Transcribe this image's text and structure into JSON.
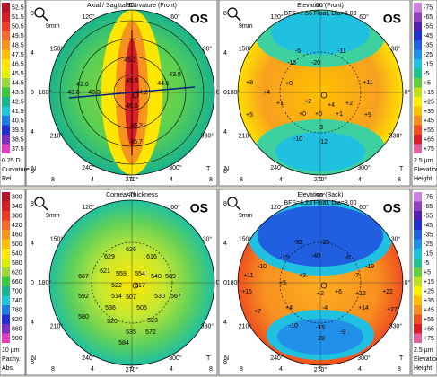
{
  "axis_ticks": [
    "8",
    "4",
    "0",
    "4",
    "8"
  ],
  "angles": [
    "90°",
    "60°",
    "30°",
    "0°",
    "330°",
    "300°",
    "270°",
    "240°",
    "210°",
    "180°",
    "150°",
    "120°"
  ],
  "nasal": "N",
  "temporal": "T",
  "panels": [
    {
      "title": "Axial / Sagittal Curvature (Front)",
      "eye": "OS",
      "zoom": "9mm",
      "scale": {
        "labels": [
          "52.5",
          "51.5",
          "50.5",
          "49.5",
          "48.5",
          "47.5",
          "46.5",
          "45.5",
          "44.5",
          "43.5",
          "42.5",
          "41.5",
          "40.5",
          "39.5",
          "38.5",
          "37.5"
        ],
        "colors": [
          "#b5162a",
          "#d81f26",
          "#ef3b24",
          "#f26b2a",
          "#f7941d",
          "#ffbf00",
          "#ffe600",
          "#e6f000",
          "#9bd63c",
          "#3cc83c",
          "#1ab38e",
          "#20c6d8",
          "#1f7fe0",
          "#2030d0",
          "#8030c0",
          "#e040c0"
        ]
      },
      "scale_footer": [
        "0.25 D",
        "Curvature",
        "Rel."
      ],
      "map_values": [
        "45.2",
        "43.8",
        "44.1",
        "42.6",
        "43.6",
        "43.8",
        "45.5",
        "44.2",
        "46.6",
        "46.2",
        "45.7"
      ]
    },
    {
      "title": "Elevation (Front)",
      "subtitle": "BFS=7.56 Float, Dia=8.00",
      "eye": "OS",
      "zoom": "9mm",
      "scale": {
        "labels": [
          "-75",
          "-65",
          "-55",
          "-45",
          "-35",
          "-25",
          "-15",
          "-5",
          "+5",
          "+15",
          "+25",
          "+35",
          "+45",
          "+55",
          "+65",
          "+75"
        ],
        "colors": [
          "#d080e0",
          "#9040c0",
          "#5020b0",
          "#2030d0",
          "#2060e0",
          "#2090e8",
          "#20c0e0",
          "#20c090",
          "#60d040",
          "#c0e020",
          "#ffee00",
          "#ffc000",
          "#f79020",
          "#f05020",
          "#d81f26",
          "#e060a0"
        ]
      },
      "scale_footer": [
        "2.5 µm",
        "Elevation",
        "Height"
      ],
      "map_values": [
        "-5",
        "-11",
        "-16",
        "-20",
        "+9",
        "+8",
        "+4",
        "+2",
        "+1",
        "+11",
        "+2",
        "+4",
        "+5",
        "+0",
        "+0",
        "+1",
        "+9",
        "-3",
        "-10",
        "-12"
      ]
    },
    {
      "title": "Corneal Thickness",
      "eye": "OS",
      "zoom": "9mm",
      "scale": {
        "labels": [
          "300",
          "340",
          "380",
          "420",
          "460",
          "500",
          "540",
          "580",
          "620",
          "660",
          "700",
          "740",
          "780",
          "820",
          "860",
          "900"
        ],
        "colors": [
          "#b5162a",
          "#d81f26",
          "#ef3b24",
          "#f26b2a",
          "#f7941d",
          "#ffbf00",
          "#ffe600",
          "#d8f000",
          "#9bd63c",
          "#3cc83c",
          "#1ab38e",
          "#20c6d8",
          "#1f7fe0",
          "#2030d0",
          "#8030c0",
          "#e040c0"
        ]
      },
      "scale_footer": [
        "10 µm",
        "Pachy.",
        "Abs."
      ],
      "map_values": [
        "629",
        "626",
        "616",
        "621",
        "559",
        "554",
        "548",
        "607",
        "589",
        "522",
        "517",
        "592",
        "514",
        "507",
        "530",
        "567",
        "536",
        "506",
        "523",
        "580",
        "520",
        "535",
        "572",
        "584"
      ]
    },
    {
      "title": "Elevation (Back)",
      "subtitle": "BFS=6.23 Float, Dia=8.00",
      "eye": "OS",
      "zoom": "9mm",
      "scale": {
        "labels": [
          "-75",
          "-65",
          "-55",
          "-45",
          "-35",
          "-25",
          "-15",
          "-5",
          "+5",
          "+15",
          "+25",
          "+35",
          "+45",
          "+55",
          "+65",
          "+75"
        ],
        "colors": [
          "#d080e0",
          "#9040c0",
          "#5020b0",
          "#2030d0",
          "#2060e0",
          "#2090e8",
          "#20c0e0",
          "#20c090",
          "#60d040",
          "#c0e020",
          "#ffee00",
          "#ffc000",
          "#f79020",
          "#f05020",
          "#d81f26",
          "#e060a0"
        ]
      },
      "scale_footer": [
        "2.5 µm",
        "Elevation",
        "Height"
      ],
      "map_values": [
        "-32",
        "-25",
        "-40",
        "-15",
        "-10",
        "-6",
        "-19",
        "+11",
        "-7",
        "+5",
        "+3",
        "+2",
        "+6",
        "+15",
        "+12",
        "+22",
        "+14",
        "+7",
        "+4",
        "+27",
        "-4",
        "-10",
        "-15",
        "-28",
        "-9"
      ]
    }
  ]
}
